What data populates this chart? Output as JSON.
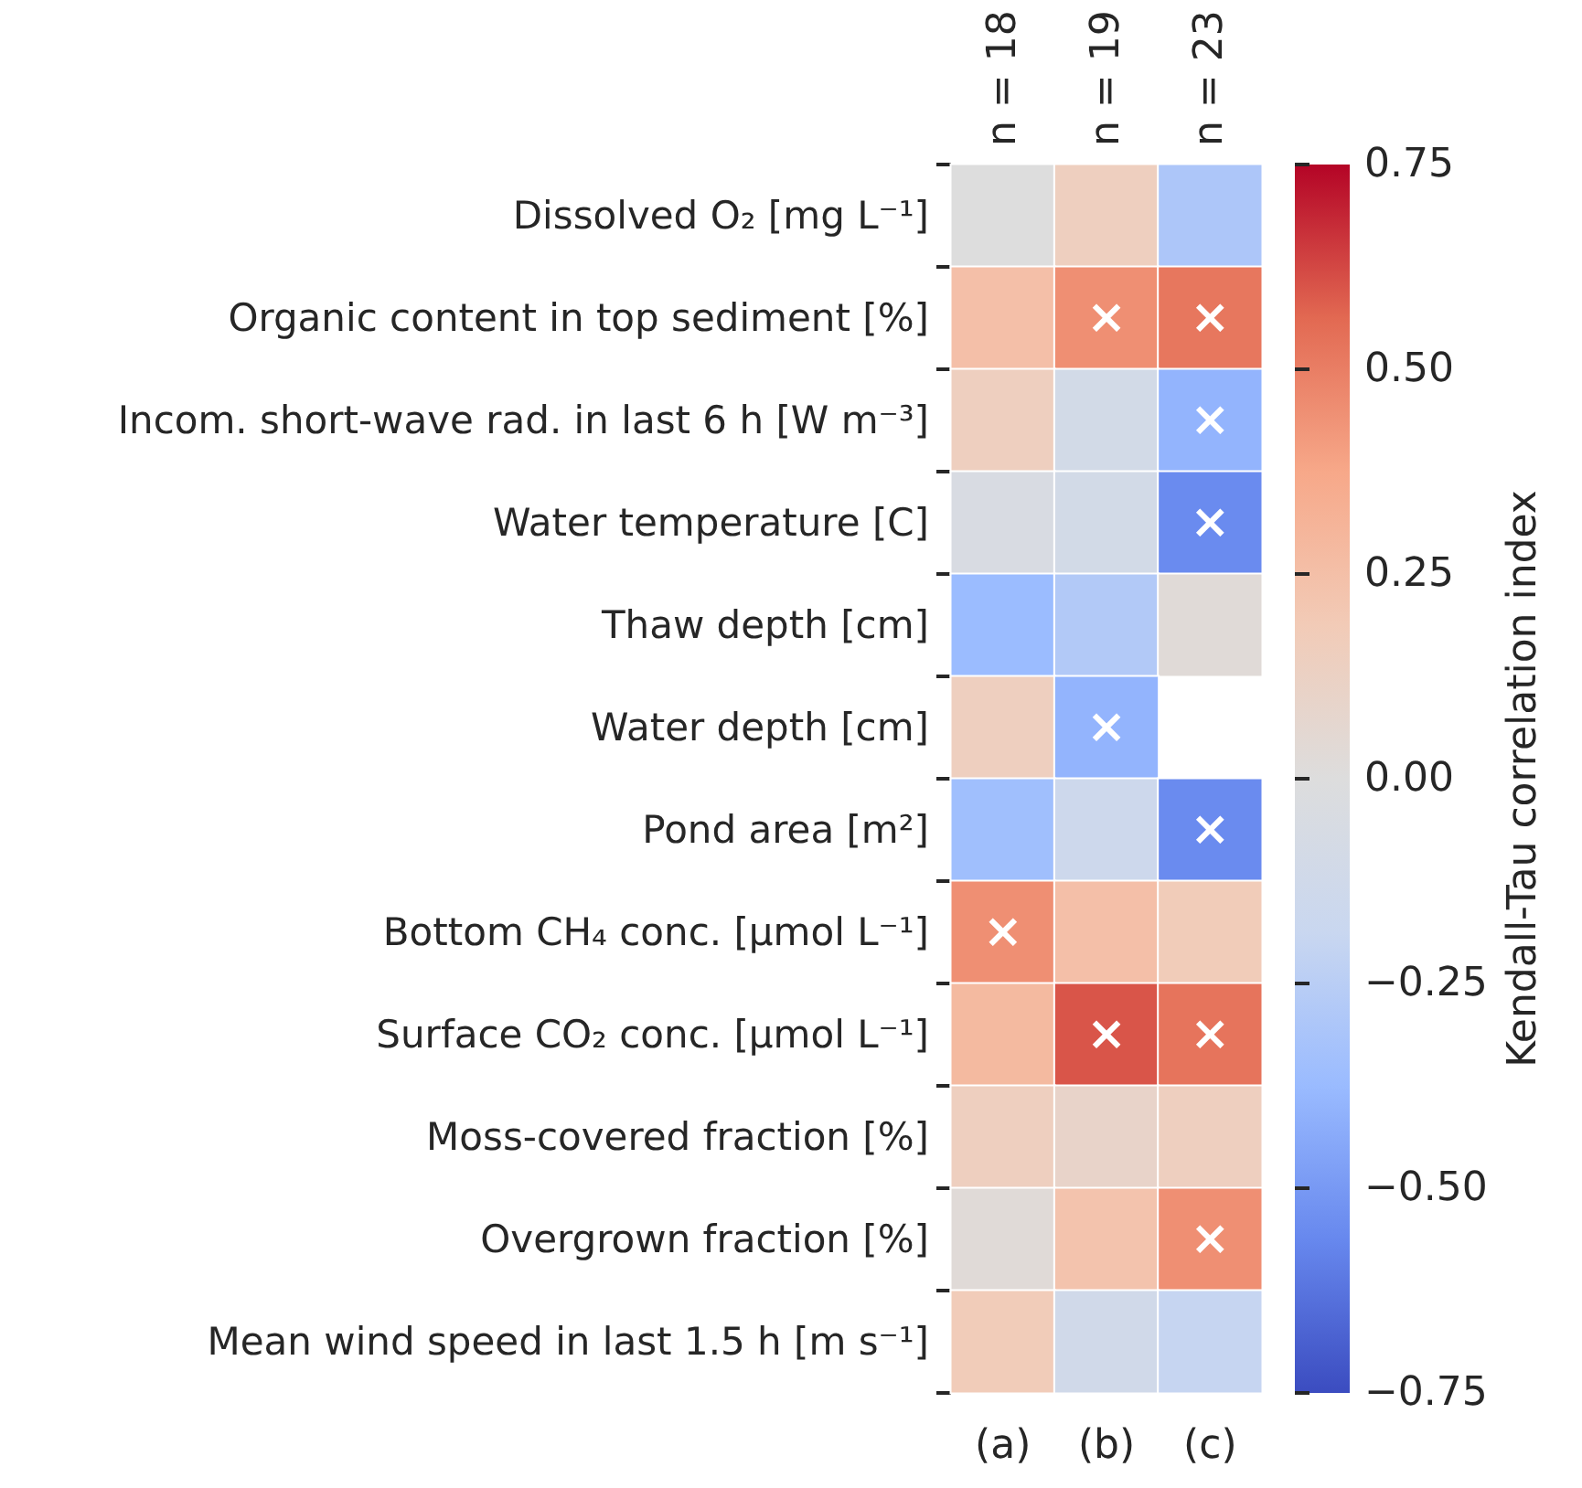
{
  "chart_data": {
    "type": "heatmap",
    "categories": [
      "(a)",
      "(b)",
      "(c)"
    ],
    "y_categories": [
      "Dissolved O₂ [mg L⁻¹]",
      "Organic content in top sediment [%]",
      "Incom. short-wave rad. in last 6 h [W m⁻³]",
      "Water temperature [C]",
      "Thaw depth [cm]",
      "Water depth [cm]",
      "Pond area [m²]",
      "Bottom CH₄ conc. [µmol L⁻¹]",
      "Surface CO₂ conc. [µmol L⁻¹]",
      "Moss-covered fraction [%]",
      "Overgrown fraction [%]",
      "Mean wind speed in last 1.5 h [m s⁻¹]"
    ],
    "cells": [
      [
        0.0,
        0.15,
        -0.3
      ],
      [
        0.25,
        0.45,
        0.52
      ],
      [
        0.15,
        -0.1,
        -0.4
      ],
      [
        -0.05,
        -0.1,
        -0.55
      ],
      [
        -0.37,
        -0.28,
        0.03
      ],
      [
        0.15,
        -0.4,
        null
      ],
      [
        -0.35,
        -0.15,
        -0.55
      ],
      [
        0.45,
        0.25,
        0.18
      ],
      [
        0.28,
        0.6,
        0.53
      ],
      [
        0.15,
        0.1,
        0.15
      ],
      [
        0.03,
        0.23,
        0.45
      ],
      [
        0.18,
        -0.12,
        -0.2
      ]
    ],
    "cell_labels": [
      [
        null,
        null,
        null
      ],
      [
        null,
        "×",
        "×"
      ],
      [
        null,
        null,
        "×"
      ],
      [
        null,
        null,
        "×"
      ],
      [
        null,
        null,
        null
      ],
      [
        null,
        "×",
        null
      ],
      [
        null,
        null,
        "×"
      ],
      [
        "×",
        null,
        null
      ],
      [
        null,
        "×",
        "×"
      ],
      [
        null,
        null,
        null
      ],
      [
        null,
        null,
        "×"
      ],
      [
        null,
        null,
        null
      ]
    ],
    "clabel": "Kendall-Tau correlation index",
    "clim": [
      -0.75,
      0.75
    ],
    "cticks": [
      {
        "value": 0.75,
        "label": "0.75"
      },
      {
        "value": 0.5,
        "label": "0.50"
      },
      {
        "value": 0.25,
        "label": "0.25"
      },
      {
        "value": 0,
        "label": "0.00"
      },
      {
        "value": -0.25,
        "label": "−0.25"
      },
      {
        "value": -0.5,
        "label": "−0.50"
      },
      {
        "value": -0.75,
        "label": "−0.75"
      }
    ],
    "annotations": [
      "n = 18",
      "n = 19",
      "n = 23"
    ]
  }
}
